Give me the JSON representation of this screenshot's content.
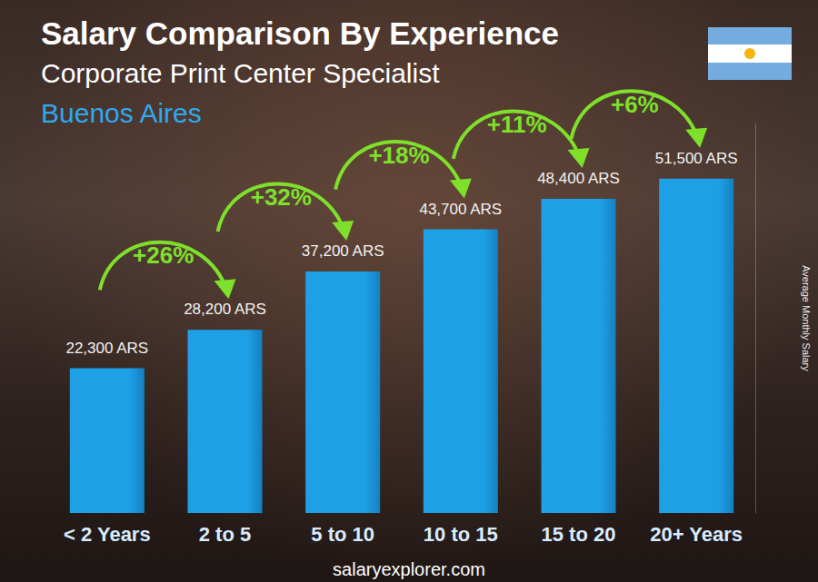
{
  "chart_data": {
    "type": "bar",
    "title": "Salary Comparison By Experience",
    "subtitle": "Corporate Print Center Specialist",
    "location": "Buenos Aires",
    "y_label": "Average Monthly Salary",
    "source": "salaryexplorer.com",
    "categories": [
      "< 2 Years",
      "2 to 5",
      "5 to 10",
      "10 to 15",
      "15 to 20",
      "20+ Years"
    ],
    "values": [
      22300,
      28200,
      37200,
      43700,
      48400,
      51500
    ],
    "value_labels": [
      "22,300 ARS",
      "28,200 ARS",
      "37,200 ARS",
      "43,700 ARS",
      "48,400 ARS",
      "51,500 ARS"
    ],
    "changes": [
      {
        "value": 26,
        "label": "+26%"
      },
      {
        "value": 32,
        "label": "+32%"
      },
      {
        "value": 18,
        "label": "+18%"
      },
      {
        "value": 11,
        "label": "+11%"
      },
      {
        "value": 6,
        "label": "+6%"
      }
    ],
    "color": "#1ea0e6",
    "ylim": [
      0,
      60000
    ],
    "grid": false,
    "data_labels": true,
    "tick_labels": "x"
  }
}
